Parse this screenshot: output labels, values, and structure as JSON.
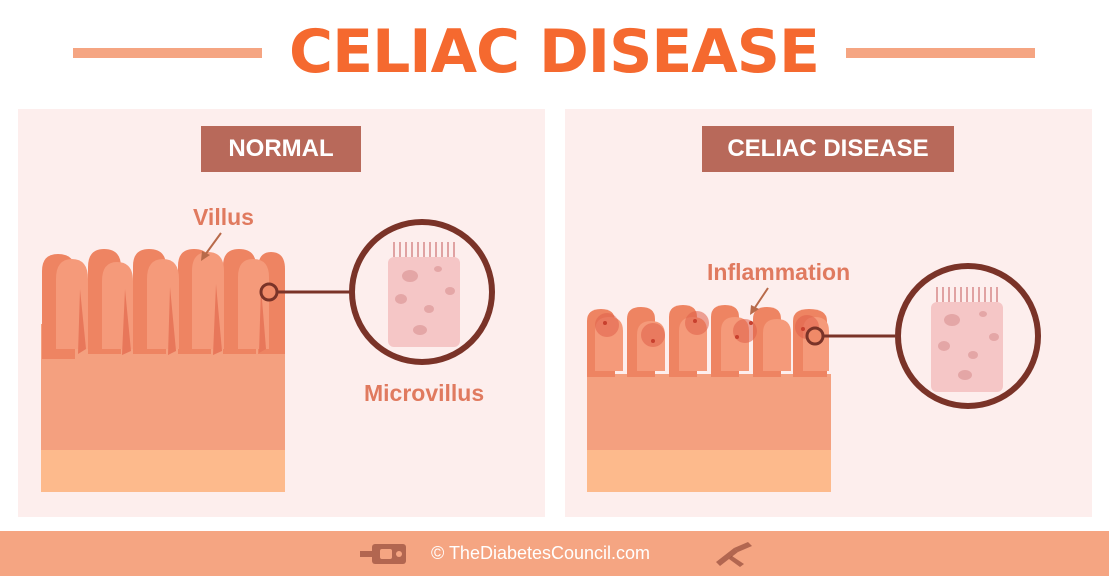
{
  "title": "CELIAC DISEASE",
  "panels": {
    "normal": {
      "label": "NORMAL",
      "villus_label": "Villus",
      "microvillus_label": "Microvillus"
    },
    "celiac": {
      "label": "CELIAC DISEASE",
      "inflammation_label": "Inflammation"
    }
  },
  "footer": {
    "credit": "© TheDiabetesCouncil.com",
    "icons": [
      "glucose-meter-icon",
      "lancet-icon"
    ]
  },
  "colors": {
    "title": "#f5692f",
    "accent_bar": "#f5a582",
    "panel_bg": "#fdeeed",
    "label_bg": "#b8695a",
    "annotation": "#e07a5f",
    "tissue": "#f4a07f",
    "villi": "#f08a68",
    "base_layer": "#fdba8c",
    "circle_outline": "#7a3328",
    "cell": "#f5c6c6"
  }
}
